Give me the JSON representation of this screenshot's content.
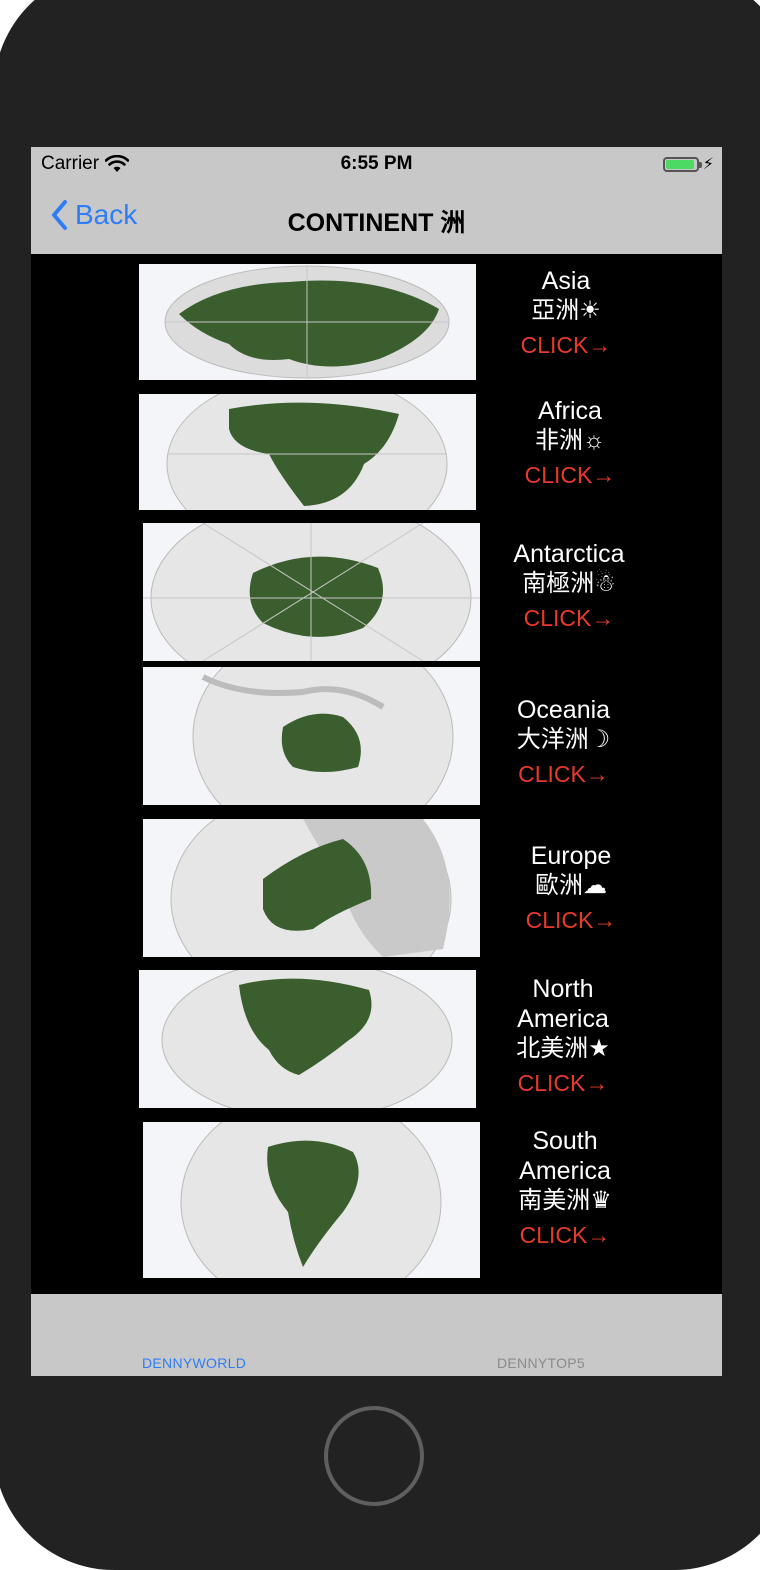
{
  "status": {
    "carrier": "Carrier",
    "time": "6:55 PM"
  },
  "nav": {
    "back_label": "Back",
    "title": "CONTINENT 洲"
  },
  "continents": [
    {
      "name": "Asia",
      "zh": "亞洲☀",
      "action": "CLICK→"
    },
    {
      "name": "Africa",
      "zh": "非洲☼",
      "action": "CLICK→"
    },
    {
      "name": "Antarctica",
      "zh": "南極洲☃",
      "action": "CLICK→"
    },
    {
      "name": "Oceania",
      "zh": "大洋洲☽",
      "action": "CLICK→"
    },
    {
      "name": "Europe",
      "zh": "歐洲☁",
      "action": "CLICK→"
    },
    {
      "name": "North America",
      "zh": "北美洲★",
      "action": "CLICK→"
    },
    {
      "name": "South America",
      "zh": "南美洲♛",
      "action": "CLICK→"
    }
  ],
  "tabs": [
    {
      "label": "DENNYWORLD",
      "active": true
    },
    {
      "label": "DENNYTOP5",
      "active": false
    }
  ],
  "colors": {
    "accent": "#2f7df6",
    "click": "#e83a2a",
    "land_highlight": "#3b5e2f",
    "bar": "#c8c8c8"
  }
}
